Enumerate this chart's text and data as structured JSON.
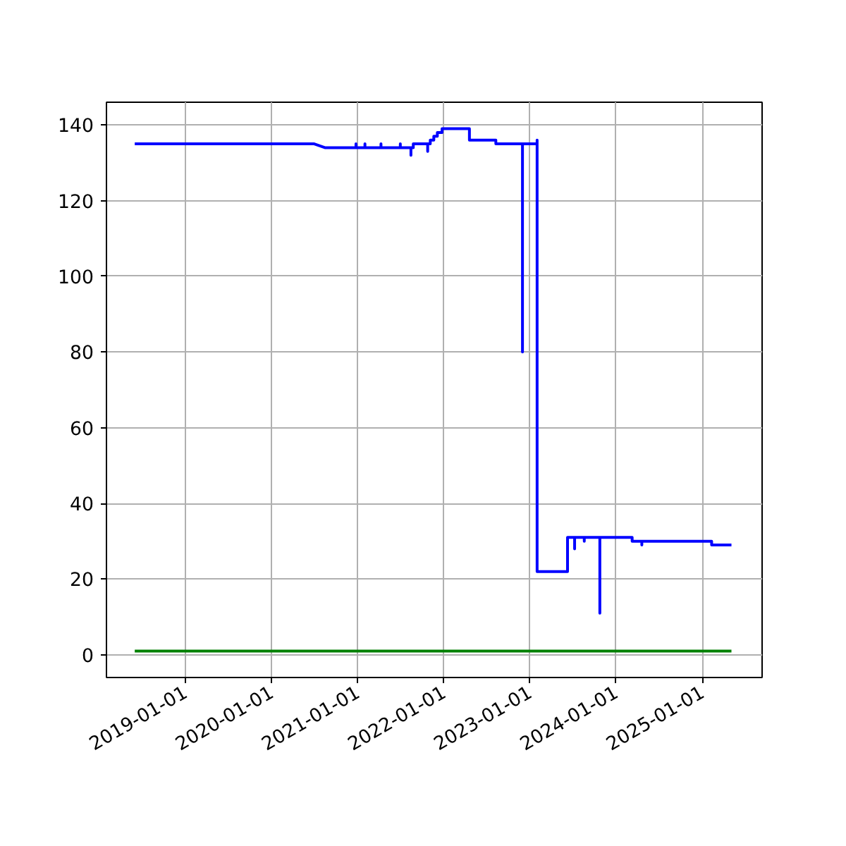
{
  "chart_data": {
    "type": "line",
    "xlim": [
      "2018-02-01",
      "2025-09-12"
    ],
    "ylim": [
      -6,
      146
    ],
    "xticks": [
      "2019-01-01",
      "2020-01-01",
      "2021-01-01",
      "2022-01-01",
      "2023-01-01",
      "2024-01-01",
      "2025-01-01"
    ],
    "yticks": [
      0,
      20,
      40,
      60,
      80,
      100,
      120,
      140
    ],
    "grid": true,
    "line_style": "solid",
    "series": [
      {
        "color": "#0000ff",
        "x": [
          "2018-06-01",
          "2020-07-01",
          "2020-08-15",
          "2020-12-25",
          "2020-12-25",
          "2020-12-25",
          "2021-02-01",
          "2021-02-01",
          "2021-02-01",
          "2021-04-10",
          "2021-04-10",
          "2021-04-10",
          "2021-07-01",
          "2021-07-01",
          "2021-07-01",
          "2021-08-15",
          "2021-08-15",
          "2021-08-15",
          "2021-08-25",
          "2021-08-25",
          "2021-10-25",
          "2021-10-25",
          "2021-10-25",
          "2021-11-05",
          "2021-11-05",
          "2021-11-20",
          "2021-11-20",
          "2021-12-05",
          "2021-12-05",
          "2021-12-25",
          "2021-12-25",
          "2022-04-20",
          "2022-04-20",
          "2022-08-10",
          "2022-08-10",
          "2022-12-01",
          "2022-12-01",
          "2022-12-01",
          "2023-02-01",
          "2023-02-01",
          "2023-02-01",
          "2023-06-10",
          "2023-06-10",
          "2023-07-10",
          "2023-07-10",
          "2023-07-10",
          "2023-08-20",
          "2023-08-20",
          "2023-08-20",
          "2023-10-25",
          "2023-10-25",
          "2023-10-25",
          "2024-03-10",
          "2024-03-10",
          "2024-04-20",
          "2024-04-20",
          "2024-04-20",
          "2025-02-10",
          "2025-02-10",
          "2025-05-05"
        ],
        "values": [
          135,
          135,
          134,
          134,
          135,
          134,
          134,
          135,
          134,
          134,
          135,
          134,
          134,
          135,
          134,
          134,
          132,
          134,
          134,
          135,
          135,
          133,
          135,
          135,
          136,
          136,
          137,
          137,
          138,
          138,
          139,
          139,
          136,
          136,
          135,
          135,
          80,
          135,
          135,
          136,
          22,
          22,
          31,
          31,
          28,
          31,
          31,
          30,
          31,
          31,
          11,
          31,
          31,
          30,
          30,
          29,
          30,
          30,
          29,
          29
        ]
      },
      {
        "color": "#008000",
        "x": [
          "2018-06-01",
          "2025-05-05"
        ],
        "values": [
          1,
          1
        ]
      }
    ]
  }
}
